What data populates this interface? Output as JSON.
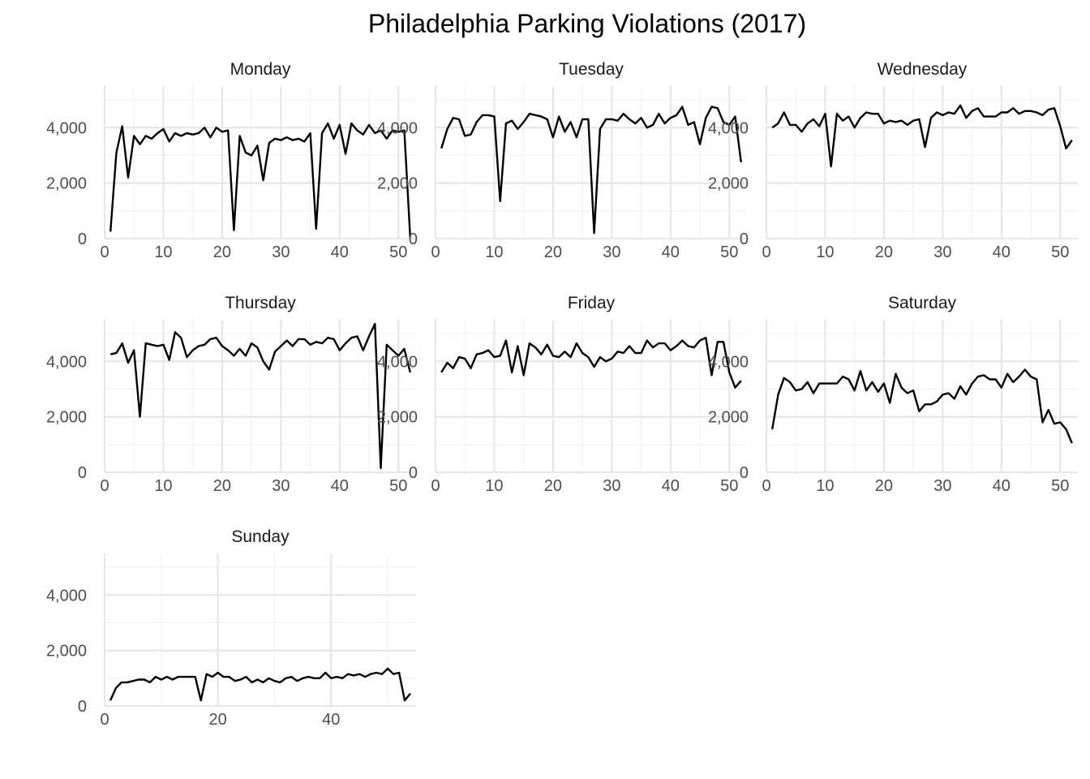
{
  "chart_data": {
    "type": "line",
    "title": "Philadelphia Parking Violations (2017)",
    "xlabel": "",
    "ylabel": "",
    "ylim": [
      0,
      5500
    ],
    "y_ticks": [
      0,
      2000,
      4000
    ],
    "y_tick_labels": [
      "0",
      "2,000",
      "4,000"
    ],
    "grid": true,
    "panels": [
      {
        "facet": "Monday",
        "xlim": [
          0,
          53
        ],
        "x_ticks": [
          0,
          10,
          20,
          30,
          40,
          50
        ],
        "x_tick_labels": [
          "0",
          "10",
          "20",
          "30",
          "40",
          "50"
        ],
        "x": [
          1,
          2,
          3,
          4,
          5,
          6,
          7,
          8,
          9,
          10,
          11,
          12,
          13,
          14,
          15,
          16,
          17,
          18,
          19,
          20,
          21,
          22,
          23,
          24,
          25,
          26,
          27,
          28,
          29,
          30,
          31,
          32,
          33,
          34,
          35,
          36,
          37,
          38,
          39,
          40,
          41,
          42,
          43,
          44,
          45,
          46,
          47,
          48,
          49,
          50,
          51,
          52
        ],
        "values": [
          250,
          3100,
          4050,
          2200,
          3700,
          3400,
          3700,
          3600,
          3800,
          3950,
          3500,
          3800,
          3700,
          3800,
          3750,
          3800,
          4000,
          3650,
          4000,
          3850,
          3900,
          300,
          3700,
          3100,
          3000,
          3350,
          2100,
          3450,
          3600,
          3550,
          3650,
          3550,
          3600,
          3500,
          3800,
          350,
          3800,
          4150,
          3600,
          4100,
          3050,
          4150,
          3900,
          3750,
          4100,
          3800,
          3900,
          3600,
          3900,
          3850,
          3900,
          50
        ]
      },
      {
        "facet": "Tuesday",
        "xlim": [
          0,
          53
        ],
        "x_ticks": [
          0,
          10,
          20,
          30,
          40,
          50
        ],
        "x_tick_labels": [
          "0",
          "10",
          "20",
          "30",
          "40",
          "50"
        ],
        "x": [
          1,
          2,
          3,
          4,
          5,
          6,
          7,
          8,
          9,
          10,
          11,
          12,
          13,
          14,
          15,
          16,
          17,
          18,
          19,
          20,
          21,
          22,
          23,
          24,
          25,
          26,
          27,
          28,
          29,
          30,
          31,
          32,
          33,
          34,
          35,
          36,
          37,
          38,
          39,
          40,
          41,
          42,
          43,
          44,
          45,
          46,
          47,
          48,
          49,
          50,
          51,
          52
        ],
        "values": [
          3250,
          3950,
          4350,
          4300,
          3700,
          3750,
          4200,
          4450,
          4450,
          4400,
          1350,
          4150,
          4250,
          3950,
          4200,
          4500,
          4450,
          4400,
          4300,
          3650,
          4400,
          3850,
          4200,
          3650,
          4300,
          4300,
          200,
          3950,
          4300,
          4300,
          4250,
          4500,
          4300,
          4150,
          4350,
          4000,
          4100,
          4500,
          4150,
          4350,
          4450,
          4750,
          4100,
          4200,
          3400,
          4350,
          4750,
          4700,
          4200,
          4100,
          4400,
          2750
        ]
      },
      {
        "facet": "Wednesday",
        "xlim": [
          0,
          53
        ],
        "x_ticks": [
          0,
          10,
          20,
          30,
          40,
          50
        ],
        "x_tick_labels": [
          "0",
          "10",
          "20",
          "30",
          "40",
          "50"
        ],
        "x": [
          1,
          2,
          3,
          4,
          5,
          6,
          7,
          8,
          9,
          10,
          11,
          12,
          13,
          14,
          15,
          16,
          17,
          18,
          19,
          20,
          21,
          22,
          23,
          24,
          25,
          26,
          27,
          28,
          29,
          30,
          31,
          32,
          33,
          34,
          35,
          36,
          37,
          38,
          39,
          40,
          41,
          42,
          43,
          44,
          45,
          46,
          47,
          48,
          49,
          50,
          51,
          52
        ],
        "values": [
          4000,
          4150,
          4550,
          4100,
          4100,
          3850,
          4150,
          4300,
          4050,
          4500,
          2600,
          4500,
          4250,
          4400,
          4000,
          4350,
          4550,
          4500,
          4500,
          4150,
          4250,
          4200,
          4250,
          4100,
          4250,
          4300,
          3300,
          4350,
          4550,
          4450,
          4550,
          4500,
          4800,
          4350,
          4600,
          4700,
          4400,
          4400,
          4400,
          4550,
          4550,
          4700,
          4500,
          4600,
          4600,
          4550,
          4450,
          4650,
          4700,
          4050,
          3250,
          3550
        ]
      },
      {
        "facet": "Thursday",
        "xlim": [
          0,
          53
        ],
        "x_ticks": [
          0,
          10,
          20,
          30,
          40,
          50
        ],
        "x_tick_labels": [
          "0",
          "10",
          "20",
          "30",
          "40",
          "50"
        ],
        "x": [
          1,
          2,
          3,
          4,
          5,
          6,
          7,
          8,
          9,
          10,
          11,
          12,
          13,
          14,
          15,
          16,
          17,
          18,
          19,
          20,
          21,
          22,
          23,
          24,
          25,
          26,
          27,
          28,
          29,
          30,
          31,
          32,
          33,
          34,
          35,
          36,
          37,
          38,
          39,
          40,
          41,
          42,
          43,
          44,
          45,
          46,
          47,
          48,
          49,
          50,
          51,
          52
        ],
        "values": [
          4250,
          4300,
          4650,
          3950,
          4400,
          2000,
          4650,
          4600,
          4550,
          4600,
          4050,
          5050,
          4850,
          4150,
          4400,
          4550,
          4600,
          4800,
          4850,
          4550,
          4400,
          4200,
          4450,
          4200,
          4650,
          4500,
          4000,
          3700,
          4350,
          4550,
          4750,
          4550,
          4800,
          4800,
          4600,
          4700,
          4650,
          4850,
          4800,
          4400,
          4650,
          4850,
          4900,
          4400,
          4900,
          5350,
          150,
          4600,
          4400,
          4200,
          4450,
          3600
        ]
      },
      {
        "facet": "Friday",
        "xlim": [
          0,
          53
        ],
        "x_ticks": [
          0,
          10,
          20,
          30,
          40,
          50
        ],
        "x_tick_labels": [
          "0",
          "10",
          "20",
          "30",
          "40",
          "50"
        ],
        "x": [
          1,
          2,
          3,
          4,
          5,
          6,
          7,
          8,
          9,
          10,
          11,
          12,
          13,
          14,
          15,
          16,
          17,
          18,
          19,
          20,
          21,
          22,
          23,
          24,
          25,
          26,
          27,
          28,
          29,
          30,
          31,
          32,
          33,
          34,
          35,
          36,
          37,
          38,
          39,
          40,
          41,
          42,
          43,
          44,
          45,
          46,
          47,
          48,
          49,
          50,
          51,
          52
        ],
        "values": [
          3600,
          3950,
          3750,
          4150,
          4100,
          3750,
          4250,
          4300,
          4400,
          4150,
          4200,
          4750,
          3600,
          4550,
          3500,
          4650,
          4500,
          4250,
          4600,
          4200,
          4150,
          4350,
          4150,
          4650,
          4300,
          4150,
          3800,
          4150,
          4000,
          4100,
          4350,
          4300,
          4550,
          4300,
          4300,
          4750,
          4500,
          4650,
          4650,
          4400,
          4550,
          4750,
          4550,
          4500,
          4750,
          4850,
          3500,
          4700,
          4700,
          3600,
          3050,
          3300
        ]
      },
      {
        "facet": "Saturday",
        "xlim": [
          0,
          53
        ],
        "x_ticks": [
          0,
          10,
          20,
          30,
          40,
          50
        ],
        "x_tick_labels": [
          "0",
          "10",
          "20",
          "30",
          "40",
          "50"
        ],
        "x": [
          1,
          2,
          3,
          4,
          5,
          6,
          7,
          8,
          9,
          10,
          11,
          12,
          13,
          14,
          15,
          16,
          17,
          18,
          19,
          20,
          21,
          22,
          23,
          24,
          25,
          26,
          27,
          28,
          29,
          30,
          31,
          32,
          33,
          34,
          35,
          36,
          37,
          38,
          39,
          40,
          41,
          42,
          43,
          44,
          45,
          46,
          47,
          48,
          49,
          50,
          51,
          52
        ],
        "values": [
          1550,
          2800,
          3400,
          3250,
          2950,
          3000,
          3250,
          2850,
          3200,
          3200,
          3200,
          3200,
          3450,
          3350,
          2950,
          3650,
          2950,
          3250,
          2900,
          3200,
          2500,
          3550,
          3050,
          2850,
          2950,
          2200,
          2450,
          2450,
          2550,
          2800,
          2850,
          2650,
          3100,
          2800,
          3200,
          3450,
          3500,
          3350,
          3350,
          3050,
          3550,
          3250,
          3450,
          3700,
          3450,
          3350,
          1800,
          2250,
          1750,
          1800,
          1550,
          1050
        ]
      },
      {
        "facet": "Sunday",
        "xlim": [
          0,
          55
        ],
        "x_ticks": [
          0,
          20,
          40
        ],
        "x_tick_labels": [
          "0",
          "20",
          "40"
        ],
        "x": [
          1,
          2,
          3,
          4,
          5,
          6,
          7,
          8,
          9,
          10,
          11,
          12,
          13,
          14,
          15,
          16,
          17,
          18,
          19,
          20,
          21,
          22,
          23,
          24,
          25,
          26,
          27,
          28,
          29,
          30,
          31,
          32,
          33,
          34,
          35,
          36,
          37,
          38,
          39,
          40,
          41,
          42,
          43,
          44,
          45,
          46,
          47,
          48,
          49,
          50,
          51,
          52,
          53,
          54
        ],
        "values": [
          200,
          650,
          850,
          850,
          900,
          950,
          950,
          850,
          1050,
          950,
          1050,
          950,
          1050,
          1050,
          1050,
          1050,
          200,
          1150,
          1050,
          1200,
          1050,
          1050,
          900,
          950,
          1050,
          850,
          950,
          850,
          1000,
          900,
          850,
          1000,
          1050,
          900,
          1000,
          1050,
          1000,
          1000,
          1200,
          1000,
          1050,
          1000,
          1150,
          1100,
          1150,
          1050,
          1150,
          1200,
          1150,
          1350,
          1150,
          1200,
          200,
          450
        ]
      }
    ]
  }
}
